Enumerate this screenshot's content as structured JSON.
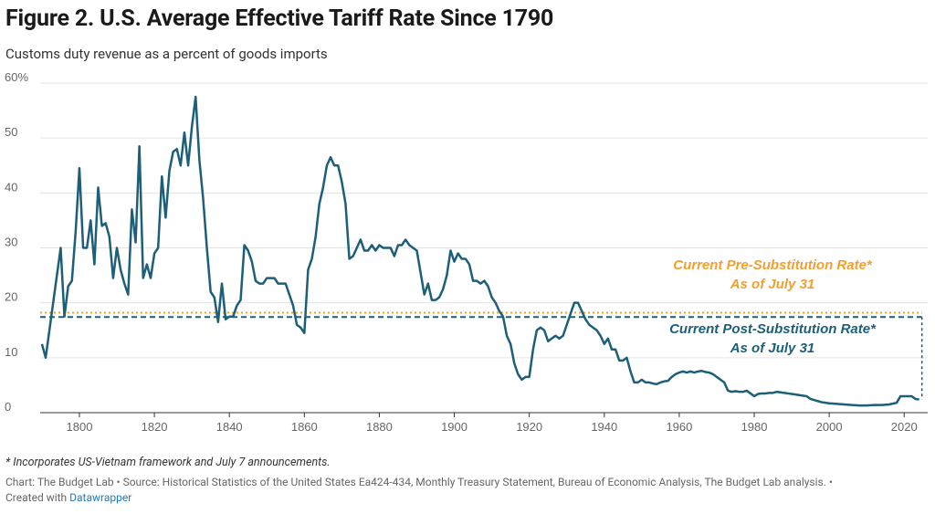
{
  "chart_data": {
    "type": "line",
    "title": "Figure 2. U.S. Average Effective Tariff Rate Since 1790",
    "subtitle": "Customs duty revenue as a percent of goods imports",
    "note": "* Incorporates US-Vietnam framework and July 7 announcements.",
    "source": "Chart: The Budget Lab • Source: Historical Statistics of the United States Ea424-434, Monthly Treasury Statement, Bureau of Economic Analysis, The Budget Lab analysis. •",
    "created_with": "Created with",
    "credit": "Datawrapper",
    "color": "#1d5f78",
    "grid": true,
    "xlim": [
      1789,
      2027
    ],
    "xticks": [
      1800,
      1820,
      1840,
      1860,
      1880,
      1900,
      1920,
      1940,
      1960,
      1980,
      2000,
      2020
    ],
    "ylim": [
      0,
      60
    ],
    "yticks": [
      0,
      10,
      20,
      30,
      40,
      50,
      {
        "value": 60,
        "label": "60%"
      }
    ],
    "x": [
      1790,
      1791,
      1792,
      1793,
      1794,
      1795,
      1796,
      1797,
      1798,
      1799,
      1800,
      1801,
      1802,
      1803,
      1804,
      1805,
      1806,
      1807,
      1808,
      1809,
      1810,
      1811,
      1812,
      1813,
      1814,
      1815,
      1816,
      1817,
      1818,
      1819,
      1820,
      1821,
      1822,
      1823,
      1824,
      1825,
      1826,
      1827,
      1828,
      1829,
      1830,
      1831,
      1832,
      1833,
      1834,
      1835,
      1836,
      1837,
      1838,
      1839,
      1840,
      1841,
      1842,
      1843,
      1844,
      1845,
      1846,
      1847,
      1848,
      1849,
      1850,
      1851,
      1852,
      1853,
      1854,
      1855,
      1856,
      1857,
      1858,
      1859,
      1860,
      1861,
      1862,
      1863,
      1864,
      1865,
      1866,
      1867,
      1868,
      1869,
      1870,
      1871,
      1872,
      1873,
      1874,
      1875,
      1876,
      1877,
      1878,
      1879,
      1880,
      1881,
      1882,
      1883,
      1884,
      1885,
      1886,
      1887,
      1888,
      1889,
      1890,
      1891,
      1892,
      1893,
      1894,
      1895,
      1896,
      1897,
      1898,
      1899,
      1900,
      1901,
      1902,
      1903,
      1904,
      1905,
      1906,
      1907,
      1908,
      1909,
      1910,
      1911,
      1912,
      1913,
      1914,
      1915,
      1916,
      1917,
      1918,
      1919,
      1920,
      1921,
      1922,
      1923,
      1924,
      1925,
      1926,
      1927,
      1928,
      1929,
      1930,
      1931,
      1932,
      1933,
      1934,
      1935,
      1936,
      1937,
      1938,
      1939,
      1940,
      1941,
      1942,
      1943,
      1944,
      1945,
      1946,
      1947,
      1948,
      1949,
      1950,
      1951,
      1952,
      1953,
      1954,
      1955,
      1956,
      1957,
      1958,
      1959,
      1960,
      1961,
      1962,
      1963,
      1964,
      1965,
      1966,
      1967,
      1968,
      1969,
      1970,
      1971,
      1972,
      1973,
      1974,
      1975,
      1976,
      1977,
      1978,
      1979,
      1980,
      1981,
      1982,
      1983,
      1984,
      1985,
      1986,
      1987,
      1988,
      1989,
      1990,
      1991,
      1992,
      1993,
      1994,
      1995,
      1996,
      1997,
      1998,
      1999,
      2000,
      2002,
      2004,
      2006,
      2008,
      2010,
      2012,
      2014,
      2016,
      2018,
      2019,
      2020,
      2021,
      2022,
      2023,
      2024
    ],
    "values": [
      12.5,
      10,
      15,
      20,
      25,
      30,
      17.5,
      23,
      24,
      33,
      44.5,
      30,
      30,
      35,
      27,
      41,
      34,
      34.5,
      32,
      24.5,
      30,
      26,
      23.5,
      21.5,
      37,
      31,
      48.5,
      24.5,
      27,
      24.5,
      29,
      30,
      43,
      35.5,
      44,
      47.5,
      48,
      45,
      51,
      45,
      52,
      57.5,
      46,
      39,
      30,
      22,
      21,
      16.5,
      23.5,
      17,
      17.5,
      17.5,
      19.5,
      20.5,
      30.5,
      29.5,
      27.5,
      24,
      23.5,
      23.5,
      24.5,
      24.5,
      24.5,
      23.5,
      23.5,
      23.5,
      21.5,
      19.5,
      16,
      15.5,
      14.5,
      26,
      28,
      32,
      38,
      41,
      45,
      46.5,
      45,
      45,
      42,
      38,
      28,
      28.5,
      30,
      31.5,
      29.5,
      29.5,
      30.5,
      29.5,
      30.5,
      30,
      30,
      30,
      28.5,
      30.5,
      30.5,
      31.5,
      30.5,
      30,
      29.5,
      25.5,
      21.5,
      23.5,
      20.5,
      20.5,
      21,
      22.5,
      25,
      29.5,
      27.5,
      29,
      28,
      28,
      27,
      24,
      24,
      23.5,
      24,
      23,
      21,
      20,
      18.5,
      17.5,
      14,
      12.5,
      9,
      7,
      6,
      6.5,
      6.5,
      11.5,
      15,
      15.5,
      15,
      13,
      13.5,
      14,
      13.5,
      14,
      16,
      18,
      20,
      20,
      18.5,
      17,
      16,
      15.5,
      15,
      14,
      12.5,
      13.5,
      11.5,
      11.5,
      9.5,
      9.5,
      10,
      7.5,
      5.5,
      5.5,
      6,
      5.5,
      5.5,
      5.3,
      5.2,
      5.5,
      5.7,
      5.8,
      6.5,
      7,
      7.3,
      7.5,
      7.3,
      7.5,
      7.3,
      7.5,
      7.6,
      7.4,
      7.3,
      7,
      6.5,
      6,
      5.5,
      4,
      3.8,
      3.9,
      3.8,
      3.8,
      4,
      3.5,
      3,
      3.4,
      3.5,
      3.5,
      3.6,
      3.6,
      3.8,
      3.7,
      3.6,
      3.5,
      3.4,
      3.3,
      3.2,
      3.1,
      3,
      2.5,
      2.3,
      2.1,
      1.9,
      1.8,
      1.7,
      1.6,
      1.5,
      1.4,
      1.3,
      1.3,
      1.4,
      1.4,
      1.5,
      1.8,
      3,
      3,
      3,
      3,
      2.5,
      2.4
    ],
    "reference_lines": [
      {
        "label_lines": [
          "Current Pre-Substitution Rate*",
          "As of July 31"
        ],
        "value": 18.2,
        "color": "#f0a030",
        "style": "dotted"
      },
      {
        "label_lines": [
          "Current Post-Substitution Rate*",
          "As of July 31"
        ],
        "value": 17.4,
        "color": "#1d5f78",
        "style": "dashed"
      }
    ]
  }
}
